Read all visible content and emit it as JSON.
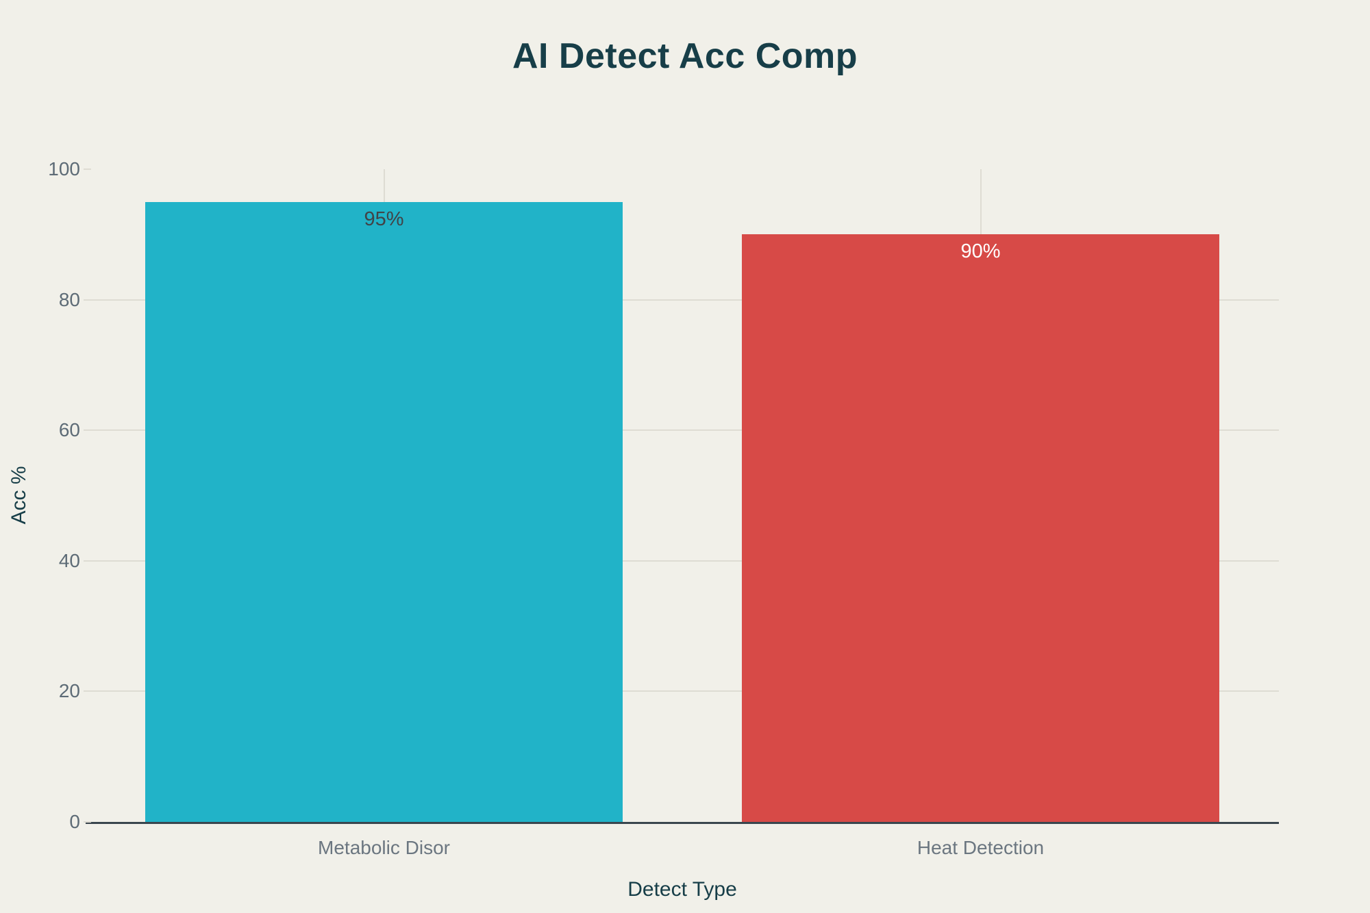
{
  "chart_data": {
    "type": "bar",
    "title": "AI Detect Acc Comp",
    "xlabel": "Detect Type",
    "ylabel": "Acc %",
    "categories": [
      "Metabolic Disor",
      "Heat Detection"
    ],
    "values": [
      95,
      90
    ],
    "series": [
      {
        "name": "Metabolic Disor",
        "value": 95,
        "label": "95%",
        "color": "#21b3c8",
        "label_color": "#414347"
      },
      {
        "name": "Heat Detection",
        "value": 90,
        "label": "90%",
        "color": "#d74a47",
        "label_color": "#ffffff"
      }
    ],
    "ylim": [
      0,
      100
    ],
    "yticks": [
      0,
      20,
      40,
      60,
      80,
      100
    ],
    "grid_yticks": [
      20,
      40,
      60,
      80
    ],
    "vertical_grid_at_category_centers": true,
    "legend_position": "none",
    "style": {
      "background": "#f1f0e9",
      "title_color": "#173e48",
      "axis_title_color": "#173e48",
      "tick_label_color": "#5d6b76",
      "category_label_color": "#6b7680",
      "gridline_color": "#dedcd3",
      "axis_line_color": "#3a464e"
    }
  }
}
